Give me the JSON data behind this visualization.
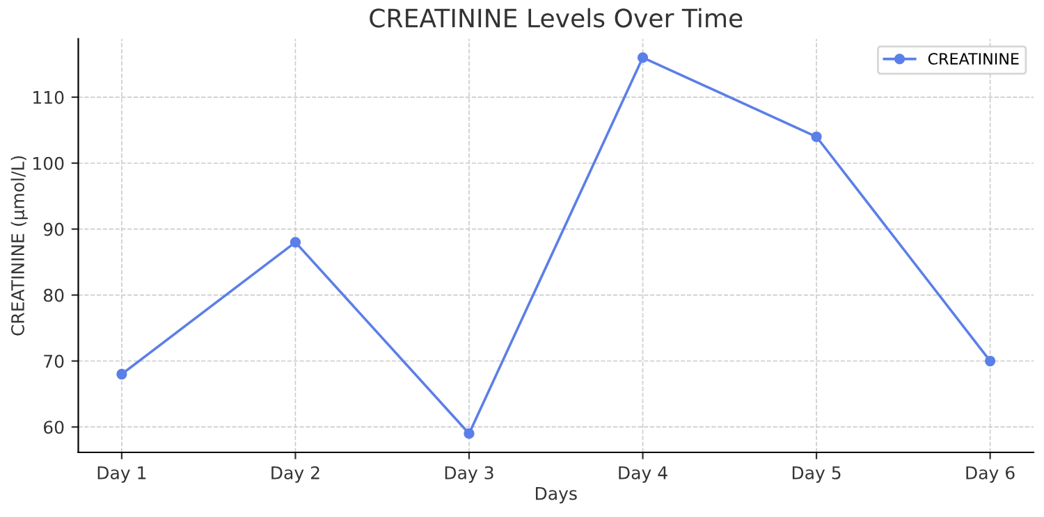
{
  "chart_data": {
    "type": "line",
    "title": "CREATININE Levels Over Time",
    "xlabel": "Days",
    "ylabel": "CREATININE (µmol/L)",
    "categories": [
      "Day 1",
      "Day 2",
      "Day 3",
      "Day 4",
      "Day 5",
      "Day 6"
    ],
    "series": [
      {
        "name": "CREATININE",
        "color": "#5b7fe8",
        "values": [
          68,
          88,
          59,
          116,
          104,
          70
        ]
      }
    ],
    "ylim": [
      56.15,
      118.85
    ],
    "yticks": [
      60,
      70,
      80,
      90,
      100,
      110
    ],
    "grid": true,
    "legend": "top right",
    "marker": "circle",
    "line_style": "solid"
  }
}
